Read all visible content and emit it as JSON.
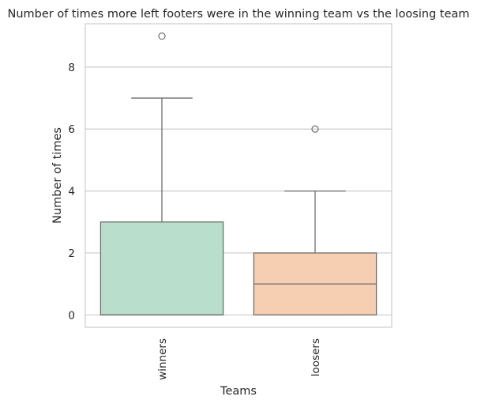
{
  "chart_data": {
    "type": "box",
    "title": "Number of times more left footers were in the winning team vs the loosing team",
    "xlabel": "Teams",
    "ylabel": "Number of times",
    "categories": [
      "winners",
      "loosers"
    ],
    "ylim": [
      -0.4,
      9.4
    ],
    "yticks": [
      0,
      2,
      4,
      6,
      8
    ],
    "grid": true,
    "series": [
      {
        "category": "winners",
        "whisker_low": 0,
        "q1": 0,
        "median": 0,
        "q3": 3,
        "whisker_high": 7,
        "outliers": [
          9
        ],
        "color": "#b9dfcc"
      },
      {
        "category": "loosers",
        "whisker_low": 0,
        "q1": 0,
        "median": 1,
        "q3": 2,
        "whisker_high": 4,
        "outliers": [
          6
        ],
        "color": "#f6cfb2"
      }
    ],
    "line_color": "#6e6e6e",
    "grid_color": "#cccccc",
    "frame_color": "#cccccc"
  }
}
